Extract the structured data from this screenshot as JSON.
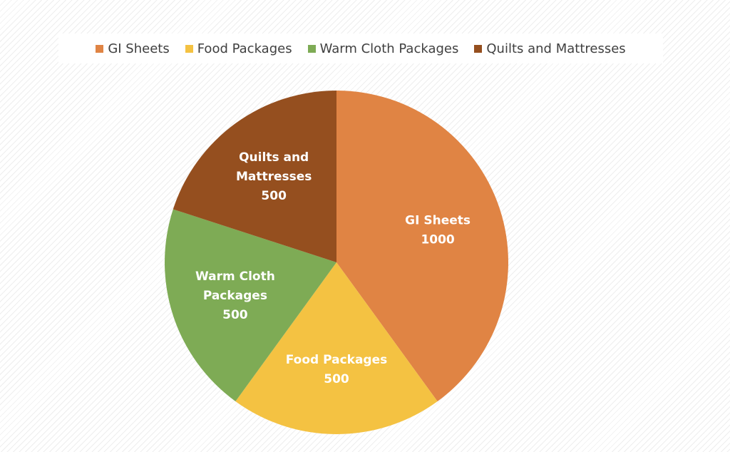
{
  "chart_data": {
    "type": "pie",
    "categories": [
      "GI Sheets",
      "Food Packages",
      "Warm Cloth Packages",
      "Quilts and Mattresses"
    ],
    "values": [
      1000,
      500,
      500,
      500
    ],
    "colors": [
      "#E08444",
      "#F4C242",
      "#7EAB55",
      "#954F1F"
    ],
    "slice_labels": [
      [
        "GI Sheets",
        "1000"
      ],
      [
        "Food Packages",
        "500"
      ],
      [
        "Warm Cloth",
        "Packages",
        "500"
      ],
      [
        "Quilts and",
        "Mattresses",
        "500"
      ]
    ],
    "legend_position": "top",
    "start_angle_deg": 0,
    "direction": "clockwise"
  }
}
